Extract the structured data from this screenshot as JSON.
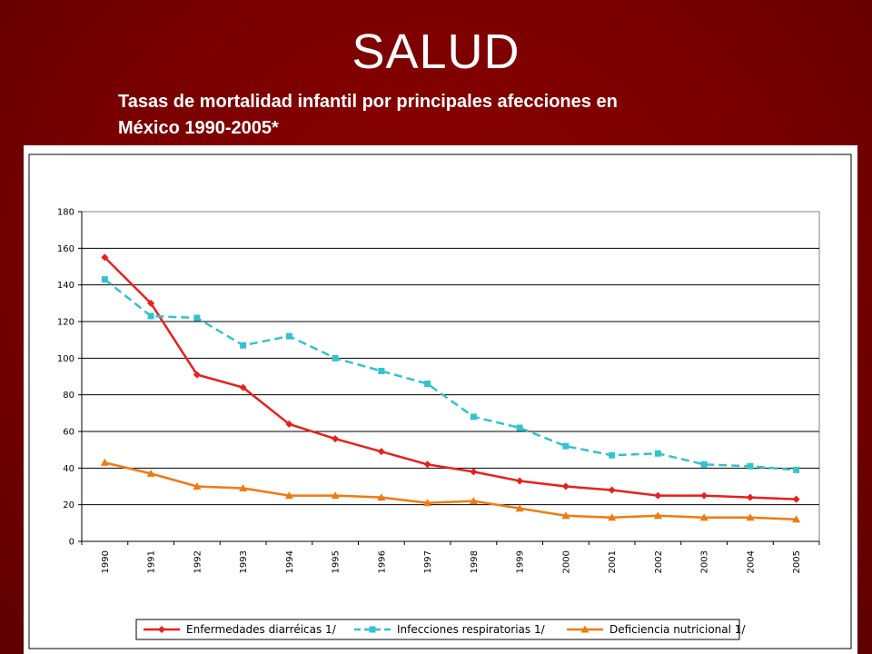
{
  "slide": {
    "title": "SALUD",
    "subtitle_line1": "Tasas de mortalidad infantil por principales afecciones en",
    "subtitle_line2": "México 1990-2005*"
  },
  "colors": {
    "background": "#7a0000",
    "series": [
      "#e8201c",
      "#33c3cc",
      "#f07a10"
    ]
  },
  "chart_data": {
    "type": "line",
    "title": "Tasas de mortalidad infantil por principales afecciones en México 1990-2005*",
    "xlabel": "",
    "ylabel": "",
    "ylim": [
      0,
      180
    ],
    "yticks": [
      0,
      20,
      40,
      60,
      80,
      100,
      120,
      140,
      160,
      180
    ],
    "grid": true,
    "legend": "bottom",
    "categories": [
      "1990",
      "1991",
      "1992",
      "1993",
      "1994",
      "1995",
      "1996",
      "1997",
      "1998",
      "1999",
      "2000",
      "2001",
      "2002",
      "2003",
      "2004",
      "2005"
    ],
    "series": [
      {
        "name": "Enfermedades diarréicas 1/",
        "marker": "diamond",
        "dash": "solid",
        "values": [
          155,
          130,
          91,
          84,
          64,
          56,
          49,
          42,
          38,
          33,
          30,
          28,
          25,
          25,
          24,
          23
        ]
      },
      {
        "name": "Infecciones respiratorias 1/",
        "marker": "square",
        "dash": "dashed",
        "values": [
          143,
          123,
          122,
          107,
          112,
          100,
          93,
          86,
          68,
          62,
          52,
          47,
          48,
          42,
          41,
          39
        ]
      },
      {
        "name": "Deficiencia nutricional 1/",
        "marker": "triangle",
        "dash": "solid",
        "values": [
          43,
          37,
          30,
          29,
          25,
          25,
          24,
          21,
          22,
          18,
          14,
          13,
          14,
          13,
          13,
          12
        ]
      }
    ]
  }
}
